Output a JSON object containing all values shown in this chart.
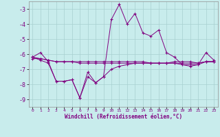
{
  "hours": [
    0,
    1,
    2,
    3,
    4,
    5,
    6,
    7,
    8,
    9,
    10,
    11,
    12,
    13,
    14,
    15,
    16,
    17,
    18,
    19,
    20,
    21,
    22,
    23
  ],
  "series_main": [
    -6.2,
    -5.9,
    -6.5,
    -7.8,
    -7.8,
    -7.7,
    -8.9,
    -7.2,
    -7.9,
    -7.5,
    -3.7,
    -2.7,
    -4.0,
    -3.3,
    -4.6,
    -4.8,
    -4.4,
    -5.9,
    -6.2,
    -6.7,
    -6.8,
    -6.7,
    -5.9,
    -6.4
  ],
  "series_flat1": [
    -6.3,
    -6.3,
    -6.4,
    -6.5,
    -6.5,
    -6.5,
    -6.5,
    -6.5,
    -6.5,
    -6.5,
    -6.5,
    -6.5,
    -6.5,
    -6.5,
    -6.5,
    -6.6,
    -6.6,
    -6.6,
    -6.6,
    -6.7,
    -6.7,
    -6.7,
    -6.5,
    -6.5
  ],
  "series_flat2": [
    -6.2,
    -6.3,
    -6.4,
    -6.5,
    -6.5,
    -6.5,
    -6.6,
    -6.6,
    -6.6,
    -6.6,
    -6.6,
    -6.6,
    -6.6,
    -6.6,
    -6.6,
    -6.6,
    -6.6,
    -6.6,
    -6.6,
    -6.6,
    -6.6,
    -6.6,
    -6.5,
    -6.5
  ],
  "series_lower": [
    -6.2,
    -6.4,
    -6.6,
    -7.8,
    -7.8,
    -7.7,
    -8.9,
    -7.5,
    -7.9,
    -7.5,
    -7.0,
    -6.8,
    -6.7,
    -6.6,
    -6.6,
    -6.6,
    -6.6,
    -6.6,
    -6.5,
    -6.5,
    -6.5,
    -6.6,
    -6.5,
    -6.5
  ],
  "line_color": "#800080",
  "bg_color": "#c8ecec",
  "grid_color": "#a8d0d0",
  "xlabel": "Windchill (Refroidissement éolien,°C)",
  "ylim": [
    -9.5,
    -2.5
  ],
  "yticks": [
    -9,
    -8,
    -7,
    -6,
    -5,
    -4,
    -3
  ],
  "xticks": [
    0,
    1,
    2,
    3,
    4,
    5,
    6,
    7,
    8,
    9,
    10,
    11,
    12,
    13,
    14,
    15,
    16,
    17,
    18,
    19,
    20,
    21,
    22,
    23
  ]
}
